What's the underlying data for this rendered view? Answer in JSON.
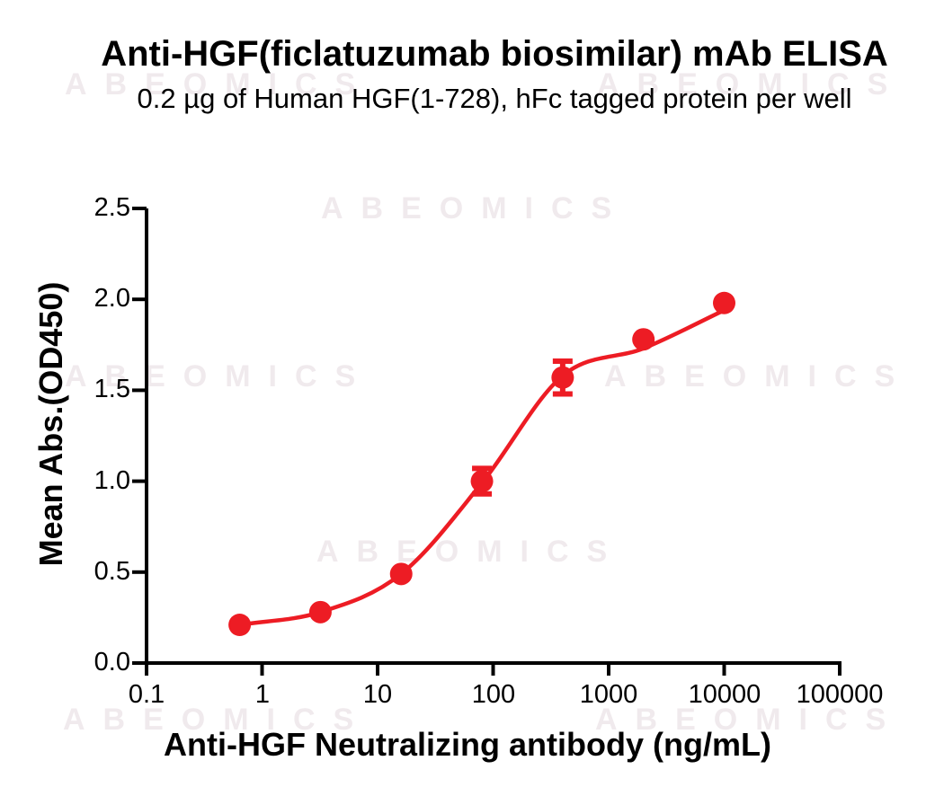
{
  "title": "Anti-HGF(ficlatuzumab biosimilar) mAb ELISA",
  "subtitle": "0.2 µg of Human HGF(1-728), hFc tagged protein per well",
  "watermark": {
    "text": "ABEOMICS"
  },
  "colors": {
    "series_red": "#ED1C24",
    "axis_black": "#000000",
    "watermark_gray": "#f0eaed"
  },
  "chart_data": {
    "type": "scatter",
    "title": "Anti-HGF(ficlatuzumab biosimilar) mAb ELISA",
    "subtitle": "0.2 µg of Human HGF(1-728), hFc tagged protein per well",
    "xlabel": "Anti-HGF Neutralizing antibody (ng/mL)",
    "ylabel": "Mean Abs.(OD450)",
    "x_scale": "log10",
    "xlim": [
      0.1,
      100000
    ],
    "ylim": [
      0.0,
      2.5
    ],
    "xticks": [
      0.1,
      1,
      10,
      100,
      1000,
      10000,
      100000
    ],
    "xtick_labels": [
      "0.1",
      "1",
      "10",
      "100",
      "1000",
      "10000",
      "100000"
    ],
    "yticks": [
      0.0,
      0.5,
      1.0,
      1.5,
      2.0,
      2.5
    ],
    "ytick_labels": [
      "0.0",
      "0.5",
      "1.0",
      "1.5",
      "2.0",
      "2.5"
    ],
    "grid": false,
    "legend": "none",
    "series": [
      {
        "name": "Anti-HGF neutralizing antibody",
        "color": "#ED1C24",
        "marker": "circle",
        "x": [
          0.64,
          3.2,
          16,
          80,
          400,
          2000,
          10000
        ],
        "y": [
          0.21,
          0.28,
          0.49,
          1.0,
          1.57,
          1.78,
          1.98
        ],
        "y_err": [
          0,
          0,
          0,
          0.07,
          0.09,
          0,
          0
        ],
        "fit_curve_y": [
          0.21,
          0.28,
          0.49,
          0.99,
          1.58,
          1.73,
          1.94
        ]
      }
    ]
  }
}
